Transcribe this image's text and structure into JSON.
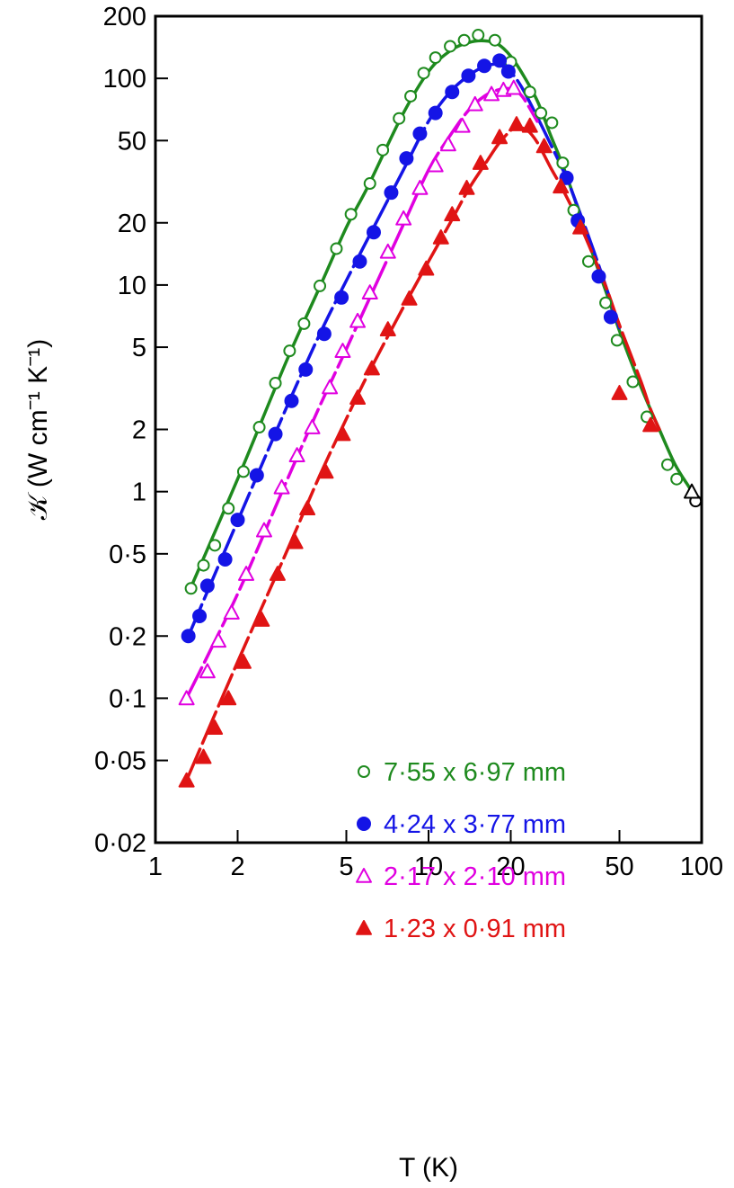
{
  "chart_data": {
    "type": "scatter",
    "title": "",
    "xlabel": "T (K)",
    "ylabel": "𝒦 (W cm⁻¹ K⁻¹)",
    "x_scale": "log",
    "y_scale": "log",
    "xlim": [
      1,
      100
    ],
    "ylim": [
      0.02,
      200
    ],
    "x_ticks": [
      1,
      2,
      5,
      10,
      20,
      50,
      100
    ],
    "x_tick_labels": [
      "1",
      "2",
      "5",
      "10",
      "20",
      "50",
      "100"
    ],
    "y_ticks": [
      0.02,
      0.05,
      0.1,
      0.2,
      0.5,
      1,
      2,
      5,
      10,
      20,
      50,
      100,
      200
    ],
    "y_tick_labels": [
      "0·02",
      "0·05",
      "0·1",
      "0·2",
      "0·5",
      "1",
      "2",
      "5",
      "10",
      "20",
      "50",
      "100",
      "200"
    ],
    "grid": false,
    "legend_position": "lower-center",
    "series": [
      {
        "name": "7·55 x 6·97 mm",
        "marker": "open-circle",
        "color": "#1e8a1e",
        "points": [
          [
            1.35,
            0.34
          ],
          [
            1.5,
            0.44
          ],
          [
            1.65,
            0.55
          ],
          [
            1.85,
            0.83
          ],
          [
            2.1,
            1.25
          ],
          [
            2.4,
            2.05
          ],
          [
            2.75,
            3.35
          ],
          [
            3.1,
            4.8
          ],
          [
            3.5,
            6.5
          ],
          [
            4.0,
            9.9
          ],
          [
            4.6,
            15
          ],
          [
            5.2,
            22
          ],
          [
            6.1,
            31
          ],
          [
            6.8,
            45
          ],
          [
            7.8,
            64
          ],
          [
            8.6,
            82
          ],
          [
            9.6,
            106
          ],
          [
            10.6,
            126
          ],
          [
            12.0,
            143
          ],
          [
            13.5,
            153
          ],
          [
            15.2,
            162
          ],
          [
            17.5,
            153
          ],
          [
            20.0,
            120
          ],
          [
            23.5,
            86
          ],
          [
            25.8,
            68
          ],
          [
            28.3,
            61
          ],
          [
            31,
            39
          ],
          [
            34,
            23
          ],
          [
            38.5,
            13
          ],
          [
            44.5,
            8.2
          ],
          [
            49,
            5.4
          ],
          [
            56,
            3.4
          ],
          [
            63,
            2.3
          ],
          [
            75,
            1.35
          ],
          [
            81,
            1.15
          ],
          [
            95,
            0.9
          ]
        ],
        "curve": [
          [
            1.33,
            0.33
          ],
          [
            2,
            1.15
          ],
          [
            3,
            4.2
          ],
          [
            4,
            9.8
          ],
          [
            5,
            19
          ],
          [
            6,
            30
          ],
          [
            8,
            66
          ],
          [
            10,
            108
          ],
          [
            12,
            136
          ],
          [
            14,
            149
          ],
          [
            16,
            152
          ],
          [
            18,
            146
          ],
          [
            20,
            128
          ],
          [
            22,
            106
          ],
          [
            25,
            78
          ],
          [
            28,
            53
          ],
          [
            31,
            38
          ],
          [
            35,
            24
          ],
          [
            40,
            14
          ],
          [
            45,
            9
          ],
          [
            50,
            6
          ],
          [
            60,
            3.2
          ],
          [
            70,
            2.0
          ],
          [
            80,
            1.35
          ],
          [
            90,
            1.05
          ],
          [
            95,
            0.93
          ]
        ]
      },
      {
        "name": "4·24 x 3·77 mm",
        "marker": "filled-circle",
        "color": "#1414e6",
        "points": [
          [
            1.32,
            0.2
          ],
          [
            1.45,
            0.25
          ],
          [
            1.55,
            0.35
          ],
          [
            1.8,
            0.47
          ],
          [
            2.0,
            0.73
          ],
          [
            2.35,
            1.2
          ],
          [
            2.75,
            1.9
          ],
          [
            3.15,
            2.75
          ],
          [
            3.55,
            3.9
          ],
          [
            4.15,
            5.8
          ],
          [
            4.8,
            8.7
          ],
          [
            5.6,
            13
          ],
          [
            6.3,
            18
          ],
          [
            7.3,
            28
          ],
          [
            8.3,
            41
          ],
          [
            9.3,
            54
          ],
          [
            10.6,
            68
          ],
          [
            12.2,
            86
          ],
          [
            14.0,
            103
          ],
          [
            16.0,
            115
          ],
          [
            18.2,
            122
          ],
          [
            19.6,
            108
          ],
          [
            32,
            33
          ],
          [
            35.2,
            20.5
          ],
          [
            42,
            11
          ],
          [
            46.5,
            7
          ]
        ],
        "curve": [
          [
            1.32,
            0.2
          ],
          [
            2,
            0.72
          ],
          [
            3,
            2.5
          ],
          [
            4,
            5.8
          ],
          [
            5,
            10.5
          ],
          [
            6,
            16.8
          ],
          [
            8,
            35
          ],
          [
            10,
            62
          ],
          [
            12,
            86
          ],
          [
            14,
            103
          ],
          [
            16,
            114
          ],
          [
            18,
            117
          ],
          [
            20,
            107
          ],
          [
            22,
            90
          ],
          [
            25,
            65
          ],
          [
            28,
            48
          ],
          [
            32,
            33
          ],
          [
            36,
            22
          ],
          [
            40,
            15
          ],
          [
            45,
            9.5
          ],
          [
            50,
            6.2
          ]
        ]
      },
      {
        "name": "2·17 x 2·10 mm",
        "marker": "open-triangle",
        "color": "#e000e0",
        "points": [
          [
            1.3,
            0.1
          ],
          [
            1.55,
            0.135
          ],
          [
            1.7,
            0.19
          ],
          [
            1.9,
            0.26
          ],
          [
            2.15,
            0.4
          ],
          [
            2.5,
            0.65
          ],
          [
            2.9,
            1.05
          ],
          [
            3.3,
            1.5
          ],
          [
            3.75,
            2.05
          ],
          [
            4.35,
            3.2
          ],
          [
            4.85,
            4.8
          ],
          [
            5.5,
            6.7
          ],
          [
            6.1,
            9.2
          ],
          [
            7.1,
            14.5
          ],
          [
            8.1,
            21
          ],
          [
            9.3,
            29.5
          ],
          [
            10.6,
            38
          ],
          [
            11.8,
            48
          ],
          [
            13.3,
            59
          ],
          [
            14.8,
            75
          ],
          [
            17.0,
            84
          ],
          [
            18.8,
            88
          ],
          [
            20.5,
            90
          ],
          [
            92,
            1.0
          ]
        ],
        "curve": [
          [
            1.3,
            0.1
          ],
          [
            2,
            0.32
          ],
          [
            3,
            1.1
          ],
          [
            4,
            2.6
          ],
          [
            5,
            4.9
          ],
          [
            6,
            8.3
          ],
          [
            8,
            19
          ],
          [
            10,
            36
          ],
          [
            12,
            53
          ],
          [
            14,
            70
          ],
          [
            16,
            82
          ],
          [
            18,
            88
          ],
          [
            20,
            89
          ],
          [
            22,
            82
          ],
          [
            25,
            62
          ]
        ]
      },
      {
        "name": "1·23 x 0·91 mm",
        "marker": "filled-triangle",
        "color": "#e01414",
        "points": [
          [
            1.3,
            0.04
          ],
          [
            1.5,
            0.052
          ],
          [
            1.65,
            0.072
          ],
          [
            1.85,
            0.1
          ],
          [
            2.1,
            0.15
          ],
          [
            2.45,
            0.24
          ],
          [
            2.8,
            0.4
          ],
          [
            3.25,
            0.57
          ],
          [
            3.6,
            0.83
          ],
          [
            4.2,
            1.25
          ],
          [
            4.85,
            1.9
          ],
          [
            5.5,
            2.85
          ],
          [
            6.2,
            3.95
          ],
          [
            7.1,
            6.1
          ],
          [
            8.5,
            8.6
          ],
          [
            9.8,
            12
          ],
          [
            11.1,
            17
          ],
          [
            12.2,
            22
          ],
          [
            13.8,
            29.5
          ],
          [
            15.5,
            39
          ],
          [
            18.2,
            52
          ],
          [
            21.0,
            60
          ],
          [
            23.5,
            59
          ],
          [
            26.5,
            47
          ],
          [
            30.5,
            30
          ],
          [
            36,
            19
          ],
          [
            50,
            3.0
          ],
          [
            65,
            2.1
          ]
        ],
        "curve": [
          [
            1.3,
            0.04
          ],
          [
            2,
            0.15
          ],
          [
            3,
            0.5
          ],
          [
            4,
            1.2
          ],
          [
            5,
            2.25
          ],
          [
            6,
            3.7
          ],
          [
            8,
            7.6
          ],
          [
            10,
            13
          ],
          [
            12,
            20
          ],
          [
            14,
            29
          ],
          [
            16,
            38
          ],
          [
            18,
            48
          ],
          [
            20,
            56
          ],
          [
            21,
            58
          ],
          [
            23,
            56
          ],
          [
            25,
            49
          ],
          [
            28,
            37
          ],
          [
            31,
            29
          ],
          [
            35,
            21
          ],
          [
            40,
            14
          ],
          [
            45,
            9.5
          ],
          [
            50,
            6.4
          ],
          [
            60,
            3.4
          ],
          [
            65,
            2.5
          ],
          [
            70,
            2.0
          ]
        ]
      }
    ]
  }
}
